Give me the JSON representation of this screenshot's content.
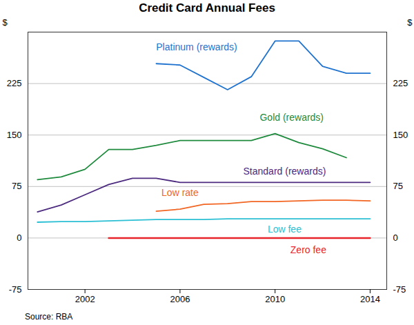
{
  "chart_data": {
    "type": "line",
    "title": "Credit Card Annual Fees",
    "source": "Source: RBA",
    "y_label": "$",
    "x": [
      2000,
      2001,
      2002,
      2003,
      2004,
      2005,
      2006,
      2007,
      2008,
      2009,
      2010,
      2011,
      2012,
      2013,
      2014
    ],
    "series": [
      {
        "name": "Platinum (rewards)",
        "color": "#1f73cf",
        "values": [
          null,
          null,
          null,
          null,
          null,
          254,
          252,
          234,
          216,
          235,
          287,
          287,
          250,
          240,
          240
        ]
      },
      {
        "name": "Gold (rewards)",
        "color": "#1d8a3c",
        "values": [
          85,
          89,
          100,
          129,
          129,
          135,
          142,
          142,
          142,
          142,
          152,
          139,
          130,
          117,
          null
        ]
      },
      {
        "name": "Standard (rewards)",
        "color": "#4b2a7f",
        "values": [
          38,
          48,
          63,
          78,
          87,
          87,
          81,
          81,
          81,
          81,
          81,
          81,
          81,
          81,
          81
        ]
      },
      {
        "name": "Low rate",
        "color": "#f26522",
        "values": [
          null,
          null,
          null,
          null,
          null,
          39,
          42,
          49,
          50,
          53,
          53,
          54,
          55,
          55,
          54
        ]
      },
      {
        "name": "Low fee",
        "color": "#2bbfd4",
        "values": [
          23,
          24,
          24,
          25,
          26,
          27,
          27,
          27,
          28,
          28,
          28,
          28,
          28,
          28,
          28
        ]
      },
      {
        "name": "Zero fee",
        "color": "#e8242a",
        "values": [
          null,
          null,
          null,
          0,
          0,
          0,
          0,
          0,
          0,
          0,
          0,
          0,
          0,
          0,
          0
        ]
      }
    ],
    "xlim": [
      1999.6,
      2014.7
    ],
    "xticks": [
      2002,
      2006,
      2010,
      2014
    ],
    "ylim": [
      -75,
      300
    ],
    "yticks": [
      -75,
      0,
      75,
      150,
      225
    ],
    "grid": true
  }
}
